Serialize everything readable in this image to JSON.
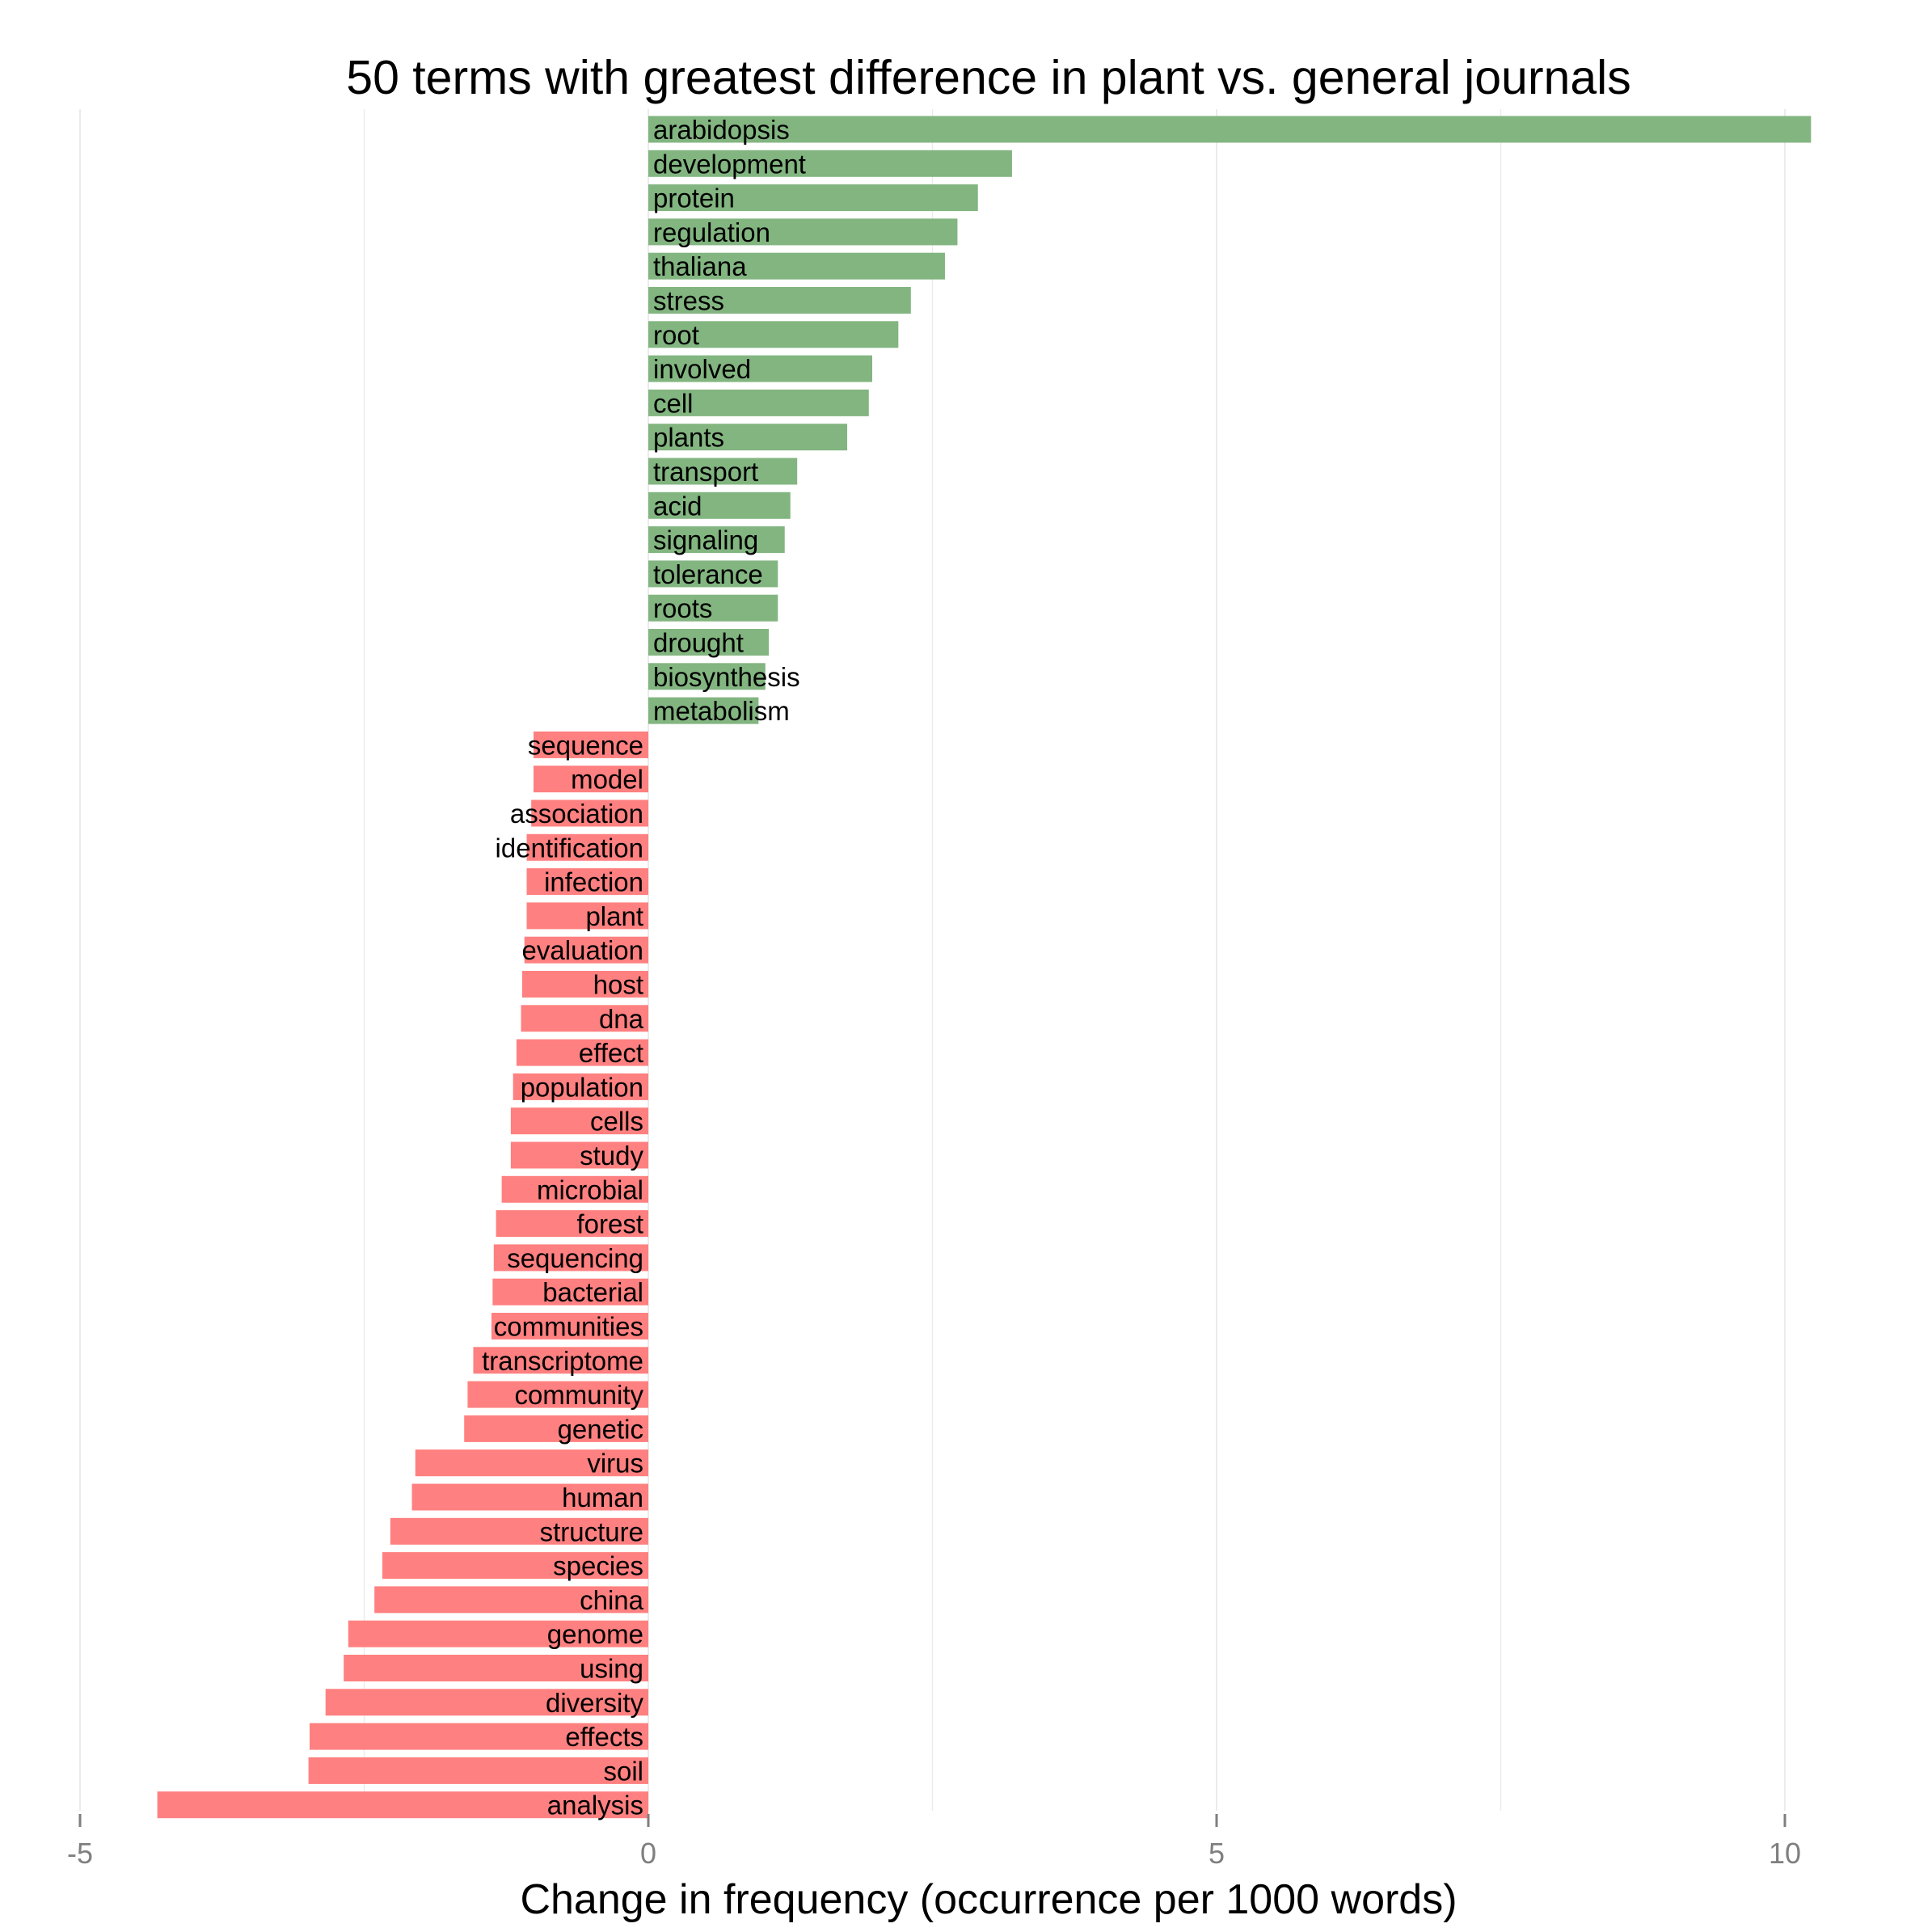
{
  "chart_data": {
    "type": "bar",
    "orientation": "horizontal",
    "title": "50 terms with  greatest difference in plant vs. general journals",
    "xlabel": "Change in frequency (occurrence per 1000 words)",
    "ylabel": "",
    "xlim": [
      -5,
      11
    ],
    "x_ticks": [
      -5,
      0,
      5,
      10
    ],
    "x_tick_labels": [
      "-5",
      "0",
      "5",
      "10"
    ],
    "grid": true,
    "categories": [
      "arabidopsis",
      "development",
      "protein",
      "regulation",
      "thaliana",
      "stress",
      "root",
      "involved",
      "cell",
      "plants",
      "transport",
      "acid",
      "signaling",
      "tolerance",
      "roots",
      "drought",
      "biosynthesis",
      "metabolism",
      "sequence",
      "model",
      "association",
      "identification",
      "infection",
      "plant",
      "evaluation",
      "host",
      "dna",
      "effect",
      "population",
      "cells",
      "study",
      "microbial",
      "forest",
      "sequencing",
      "bacterial",
      "communities",
      "transcriptome",
      "community",
      "genetic",
      "virus",
      "human",
      "structure",
      "species",
      "china",
      "genome",
      "using",
      "diversity",
      "effects",
      "soil",
      "analysis"
    ],
    "values": [
      10.23,
      3.2,
      2.9,
      2.72,
      2.61,
      2.31,
      2.2,
      1.97,
      1.94,
      1.75,
      1.31,
      1.25,
      1.2,
      1.14,
      1.14,
      1.06,
      1.03,
      0.97,
      -1.01,
      -1.01,
      -1.03,
      -1.07,
      -1.07,
      -1.07,
      -1.09,
      -1.11,
      -1.12,
      -1.16,
      -1.19,
      -1.21,
      -1.21,
      -1.29,
      -1.34,
      -1.36,
      -1.37,
      -1.38,
      -1.54,
      -1.59,
      -1.62,
      -2.05,
      -2.08,
      -2.27,
      -2.34,
      -2.41,
      -2.64,
      -2.68,
      -2.84,
      -2.98,
      -2.99,
      -4.32
    ],
    "colors": {
      "positive": "#82b580",
      "negative": "#ff8080",
      "grid": "#ebebeb",
      "tick": "#7f7f7f"
    }
  }
}
